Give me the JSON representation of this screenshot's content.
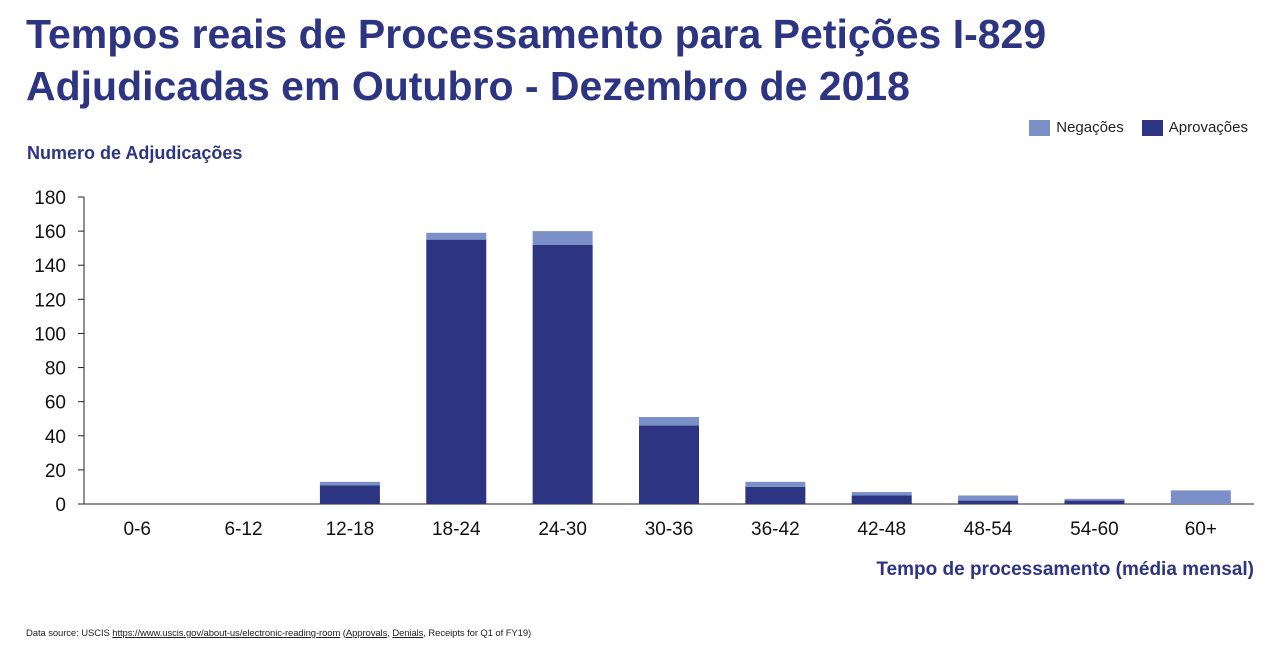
{
  "title_lines": [
    "Tempos reais de Processamento para Petições I-829",
    "Adjudicadas em Outubro - Dezembro de 2018"
  ],
  "source": {
    "prefix": "Data source: USCIS ",
    "link": "https://www.uscis.gov/about-us/electronic-reading-room",
    "middle1": " (",
    "approvals": "Approvals",
    "comma": ", ",
    "denials": "Denials",
    "suffix": ", Receipts for Q1 of FY19)"
  },
  "colors": {
    "approvals": "#2d3582",
    "denials": "#7b8fc8",
    "text": "#2d3582"
  },
  "chart_data": {
    "type": "bar",
    "stacked": true,
    "title": "Tempos reais de Processamento para Petições I-829 Adjudicadas em Outubro - Dezembro de 2018",
    "xlabel": "Tempo de processamento (média mensal)",
    "ylabel": "Numero de Adjudicações",
    "ylim": [
      0,
      180
    ],
    "yticks": [
      0,
      20,
      40,
      60,
      80,
      100,
      120,
      140,
      160,
      180
    ],
    "categories": [
      "0-6",
      "6-12",
      "12-18",
      "18-24",
      "24-30",
      "30-36",
      "36-42",
      "42-48",
      "48-54",
      "54-60",
      "60+"
    ],
    "series": [
      {
        "name": "Aprovações",
        "color": "#2d3582",
        "values": [
          0,
          0,
          11,
          155,
          152,
          46,
          10,
          5,
          2,
          2,
          0
        ]
      },
      {
        "name": "Negações",
        "color": "#7b8fc8",
        "values": [
          0,
          0,
          2,
          4,
          8,
          5,
          3,
          2,
          3,
          1,
          8
        ]
      }
    ],
    "legend": [
      "Negações",
      "Aprovações"
    ],
    "legend_position": "top-right",
    "grid": false
  }
}
